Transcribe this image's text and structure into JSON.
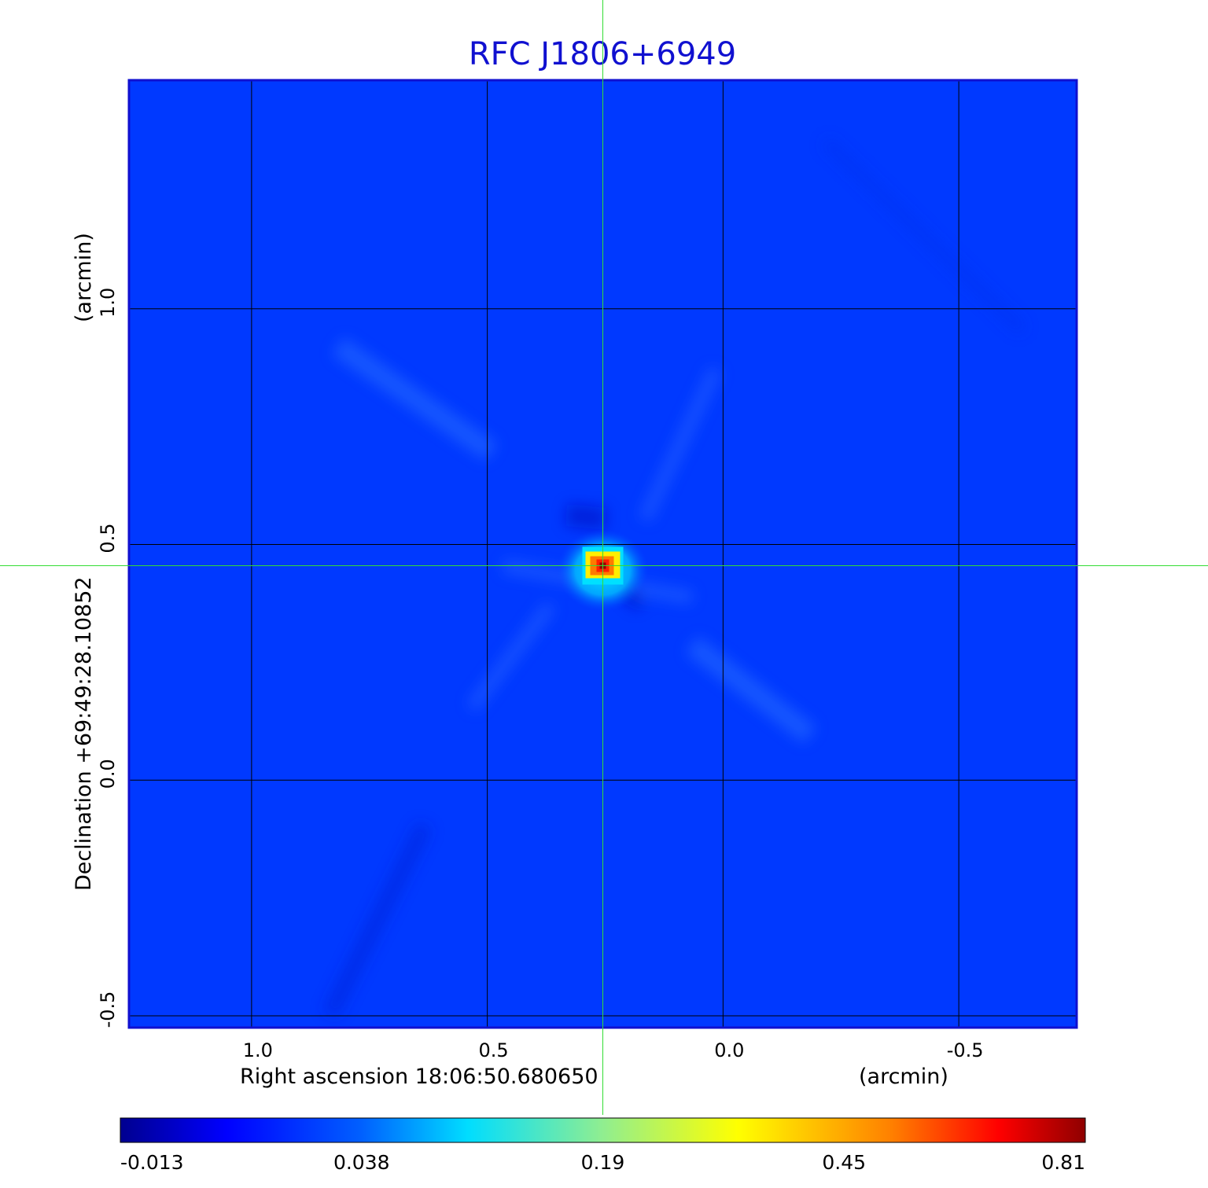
{
  "chart_data": {
    "type": "heatmap",
    "title": "RFC J1806+6949",
    "xlabel": "Right ascension  18:06:50.680650",
    "xunit": "(arcmin)",
    "ylabel": "Declination  +69:49:28.10852",
    "yunit": "(arcmin)",
    "x_ticks": [
      "1.0",
      "0.5",
      "0.0",
      "-0.5"
    ],
    "x_tick_values": [
      1.0,
      0.5,
      0.0,
      -0.5
    ],
    "y_ticks": [
      "1.0",
      "0.5",
      "0.0",
      "-0.5"
    ],
    "y_tick_values": [
      1.0,
      0.5,
      0.0,
      -0.5
    ],
    "xlim": [
      1.26,
      -0.75
    ],
    "ylim": [
      -0.525,
      1.485
    ],
    "grid": true,
    "colorbar": {
      "labels": [
        "-0.013",
        "0.038",
        "0.19",
        "0.45",
        "0.81"
      ],
      "colormap": "jet"
    },
    "crosshair": {
      "x": 0.255,
      "y": 0.455,
      "color": "#33dd33"
    },
    "peak": {
      "x": 0.255,
      "y": 0.455
    }
  },
  "colors": {
    "background_field": "#0039ff",
    "frame": "#1010d0",
    "grid": "#000000",
    "title": "#1010d0"
  }
}
